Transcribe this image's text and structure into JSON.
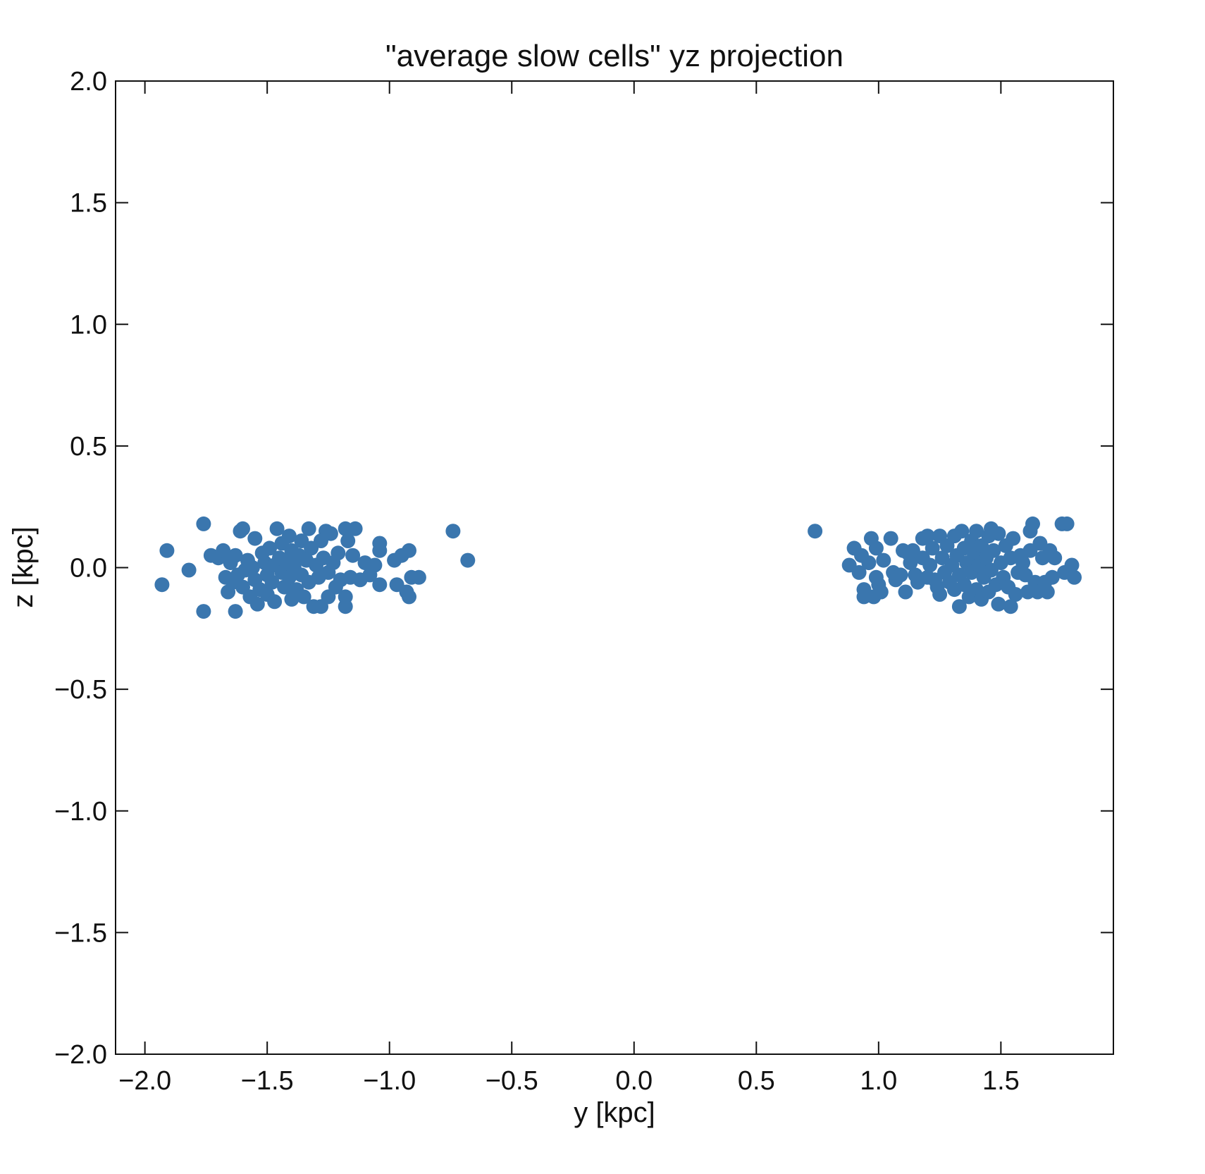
{
  "chart_data": {
    "type": "scatter",
    "title": "\"average slow cells\" yz projection",
    "xlabel": "y [kpc]",
    "ylabel": "z [kpc]",
    "xlim": [
      -2.12,
      1.96
    ],
    "ylim": [
      -2.0,
      2.0
    ],
    "xticks": [
      -2.0,
      -1.5,
      -1.0,
      -0.5,
      0.0,
      0.5,
      1.0,
      1.5
    ],
    "xtick_labels": [
      "−2.0",
      "−1.5",
      "−1.0",
      "−0.5",
      "0.0",
      "0.5",
      "1.0",
      "1.5"
    ],
    "yticks": [
      2.0,
      1.5,
      1.0,
      0.5,
      0.0,
      -0.5,
      -1.0,
      -1.5,
      -2.0
    ],
    "ytick_labels": [
      "2.0",
      "1.5",
      "1.0",
      "0.5",
      "0.0",
      "−0.5",
      "−1.0",
      "−1.5",
      "−2.0"
    ],
    "grid": false,
    "marker_color": "#3a76ae",
    "series": [
      {
        "points": [
          [
            -1.93,
            -0.07
          ],
          [
            -1.91,
            0.07
          ],
          [
            -1.82,
            -0.01
          ],
          [
            -1.76,
            0.18
          ],
          [
            -1.76,
            -0.18
          ],
          [
            -1.73,
            0.05
          ],
          [
            -1.7,
            0.04
          ],
          [
            -1.68,
            0.07
          ],
          [
            -1.67,
            -0.04
          ],
          [
            -1.66,
            -0.1
          ],
          [
            -1.65,
            0.02
          ],
          [
            -1.64,
            -0.06
          ],
          [
            -1.63,
            0.05
          ],
          [
            -1.63,
            -0.18
          ],
          [
            -1.62,
            -0.03
          ],
          [
            -1.61,
            0.15
          ],
          [
            -1.6,
            0.16
          ],
          [
            -1.6,
            -0.08
          ],
          [
            -1.59,
            -0.01
          ],
          [
            -1.58,
            0.03
          ],
          [
            -1.57,
            -0.12
          ],
          [
            -1.56,
            0.0
          ],
          [
            -1.55,
            0.12
          ],
          [
            -1.55,
            -0.05
          ],
          [
            -1.54,
            -0.15
          ],
          [
            -1.53,
            -0.09
          ],
          [
            -1.52,
            0.06
          ],
          [
            -1.51,
            0.02
          ],
          [
            -1.5,
            -0.03
          ],
          [
            -1.5,
            -0.11
          ],
          [
            -1.49,
            0.08
          ],
          [
            -1.48,
            -0.06
          ],
          [
            -1.47,
            0.01
          ],
          [
            -1.47,
            -0.14
          ],
          [
            -1.46,
            0.16
          ],
          [
            -1.45,
            0.04
          ],
          [
            -1.44,
            -0.02
          ],
          [
            -1.44,
            0.1
          ],
          [
            -1.43,
            -0.08
          ],
          [
            -1.42,
            0.02
          ],
          [
            -1.41,
            0.13
          ],
          [
            -1.41,
            -0.04
          ],
          [
            -1.4,
            0.07
          ],
          [
            -1.4,
            -0.13
          ],
          [
            -1.39,
            0.0
          ],
          [
            -1.38,
            -0.09
          ],
          [
            -1.37,
            0.05
          ],
          [
            -1.36,
            0.11
          ],
          [
            -1.36,
            -0.03
          ],
          [
            -1.35,
            -0.12
          ],
          [
            -1.34,
            0.03
          ],
          [
            -1.33,
            0.16
          ],
          [
            -1.33,
            -0.06
          ],
          [
            -1.32,
            0.08
          ],
          [
            -1.31,
            -0.16
          ],
          [
            -1.3,
            0.01
          ],
          [
            -1.29,
            -0.04
          ],
          [
            -1.28,
            0.11
          ],
          [
            -1.28,
            -0.16
          ],
          [
            -1.27,
            0.04
          ],
          [
            -1.26,
            0.15
          ],
          [
            -1.25,
            -0.02
          ],
          [
            -1.25,
            -0.12
          ],
          [
            -1.24,
            0.14
          ],
          [
            -1.23,
            0.02
          ],
          [
            -1.22,
            -0.08
          ],
          [
            -1.21,
            0.06
          ],
          [
            -1.2,
            -0.05
          ],
          [
            -1.18,
            0.16
          ],
          [
            -1.18,
            -0.12
          ],
          [
            -1.18,
            -0.16
          ],
          [
            -1.17,
            0.11
          ],
          [
            -1.16,
            -0.04
          ],
          [
            -1.15,
            0.05
          ],
          [
            -1.14,
            0.16
          ],
          [
            -1.12,
            -0.05
          ],
          [
            -1.1,
            0.02
          ],
          [
            -1.08,
            -0.03
          ],
          [
            -1.06,
            0.01
          ],
          [
            -1.04,
            0.1
          ],
          [
            -1.04,
            0.07
          ],
          [
            -1.04,
            -0.07
          ],
          [
            -0.98,
            0.03
          ],
          [
            -0.97,
            -0.07
          ],
          [
            -0.95,
            0.05
          ],
          [
            -0.93,
            -0.1
          ],
          [
            -0.92,
            0.07
          ],
          [
            -0.92,
            -0.12
          ],
          [
            -0.91,
            -0.04
          ],
          [
            -0.88,
            -0.04
          ],
          [
            -0.74,
            0.15
          ],
          [
            -0.68,
            0.03
          ],
          [
            0.74,
            0.15
          ],
          [
            0.88,
            0.01
          ],
          [
            0.9,
            0.08
          ],
          [
            0.92,
            -0.02
          ],
          [
            0.93,
            0.05
          ],
          [
            0.94,
            -0.09
          ],
          [
            0.94,
            -0.12
          ],
          [
            0.96,
            0.02
          ],
          [
            0.97,
            0.12
          ],
          [
            0.98,
            -0.12
          ],
          [
            0.99,
            0.08
          ],
          [
            0.99,
            -0.04
          ],
          [
            1.0,
            -0.07
          ],
          [
            1.01,
            -0.1
          ],
          [
            1.02,
            0.03
          ],
          [
            1.05,
            0.12
          ],
          [
            1.06,
            -0.02
          ],
          [
            1.07,
            -0.05
          ],
          [
            1.09,
            -0.03
          ],
          [
            1.1,
            0.07
          ],
          [
            1.11,
            -0.1
          ],
          [
            1.12,
            0.06
          ],
          [
            1.13,
            0.02
          ],
          [
            1.14,
            0.07
          ],
          [
            1.15,
            -0.03
          ],
          [
            1.16,
            -0.06
          ],
          [
            1.18,
            0.04
          ],
          [
            1.18,
            0.12
          ],
          [
            1.2,
            0.13
          ],
          [
            1.2,
            -0.04
          ],
          [
            1.21,
            0.01
          ],
          [
            1.22,
            0.08
          ],
          [
            1.23,
            -0.05
          ],
          [
            1.24,
            -0.08
          ],
          [
            1.25,
            0.13
          ],
          [
            1.25,
            -0.11
          ],
          [
            1.26,
            0.04
          ],
          [
            1.27,
            -0.02
          ],
          [
            1.28,
            0.09
          ],
          [
            1.29,
            -0.06
          ],
          [
            1.3,
            0.01
          ],
          [
            1.31,
            0.13
          ],
          [
            1.31,
            -0.09
          ],
          [
            1.32,
            0.05
          ],
          [
            1.33,
            -0.03
          ],
          [
            1.33,
            -0.16
          ],
          [
            1.34,
            0.15
          ],
          [
            1.35,
            0.08
          ],
          [
            1.35,
            -0.07
          ],
          [
            1.36,
            0.02
          ],
          [
            1.37,
            -0.12
          ],
          [
            1.38,
            0.11
          ],
          [
            1.38,
            -0.02
          ],
          [
            1.39,
            0.06
          ],
          [
            1.4,
            -0.09
          ],
          [
            1.4,
            0.15
          ],
          [
            1.41,
            0.01
          ],
          [
            1.42,
            -0.13
          ],
          [
            1.42,
            0.09
          ],
          [
            1.43,
            -0.04
          ],
          [
            1.44,
            0.04
          ],
          [
            1.45,
            0.13
          ],
          [
            1.45,
            -0.1
          ],
          [
            1.46,
            0.16
          ],
          [
            1.46,
            -0.01
          ],
          [
            1.47,
            0.07
          ],
          [
            1.48,
            -0.07
          ],
          [
            1.49,
            0.14
          ],
          [
            1.49,
            -0.15
          ],
          [
            1.5,
            0.02
          ],
          [
            1.51,
            -0.04
          ],
          [
            1.52,
            0.09
          ],
          [
            1.53,
            -0.08
          ],
          [
            1.54,
            0.04
          ],
          [
            1.54,
            -0.16
          ],
          [
            1.55,
            0.12
          ],
          [
            1.56,
            -0.11
          ],
          [
            1.57,
            -0.02
          ],
          [
            1.58,
            0.05
          ],
          [
            1.59,
            0.02
          ],
          [
            1.6,
            -0.03
          ],
          [
            1.61,
            -0.1
          ],
          [
            1.62,
            0.15
          ],
          [
            1.62,
            0.07
          ],
          [
            1.63,
            0.18
          ],
          [
            1.64,
            -0.06
          ],
          [
            1.65,
            -0.1
          ],
          [
            1.66,
            0.1
          ],
          [
            1.67,
            0.04
          ],
          [
            1.68,
            -0.06
          ],
          [
            1.69,
            -0.1
          ],
          [
            1.7,
            0.07
          ],
          [
            1.71,
            -0.04
          ],
          [
            1.72,
            0.04
          ],
          [
            1.75,
            0.18
          ],
          [
            1.76,
            -0.02
          ],
          [
            1.77,
            0.18
          ],
          [
            1.79,
            0.01
          ],
          [
            1.8,
            -0.04
          ]
        ]
      }
    ]
  }
}
